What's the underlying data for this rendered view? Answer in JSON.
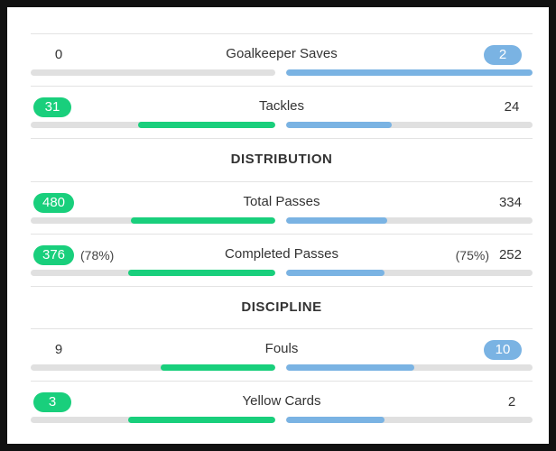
{
  "stats_top": [
    {
      "label": "Goalkeeper Saves",
      "home": "0",
      "away": "2",
      "home_highlight": false,
      "away_highlight": true,
      "home_fill": 0.0,
      "away_fill": 1.0
    },
    {
      "label": "Tackles",
      "home": "31",
      "away": "24",
      "home_highlight": true,
      "away_highlight": false,
      "home_fill": 0.56,
      "away_fill": 0.43
    }
  ],
  "section_distribution": "DISTRIBUTION",
  "stats_distribution": [
    {
      "label": "Total Passes",
      "home": "480",
      "away": "334",
      "home_highlight": true,
      "away_highlight": false,
      "home_fill": 0.59,
      "away_fill": 0.41
    },
    {
      "label": "Completed Passes",
      "home": "376",
      "away": "252",
      "home_pct": "(78%)",
      "away_pct": "(75%)",
      "home_highlight": true,
      "away_highlight": false,
      "home_fill": 0.6,
      "away_fill": 0.4
    }
  ],
  "section_discipline": "DISCIPLINE",
  "stats_discipline": [
    {
      "label": "Fouls",
      "home": "9",
      "away": "10",
      "home_highlight": false,
      "away_highlight": true,
      "home_fill": 0.47,
      "away_fill": 0.52
    },
    {
      "label": "Yellow Cards",
      "home": "3",
      "away": "2",
      "home_highlight": true,
      "away_highlight": false,
      "home_fill": 0.6,
      "away_fill": 0.4
    }
  ],
  "colors": {
    "home": "#19cf7c",
    "away": "#7ab3e3",
    "track": "#e0e0e0",
    "divider": "#e3e3e3"
  }
}
